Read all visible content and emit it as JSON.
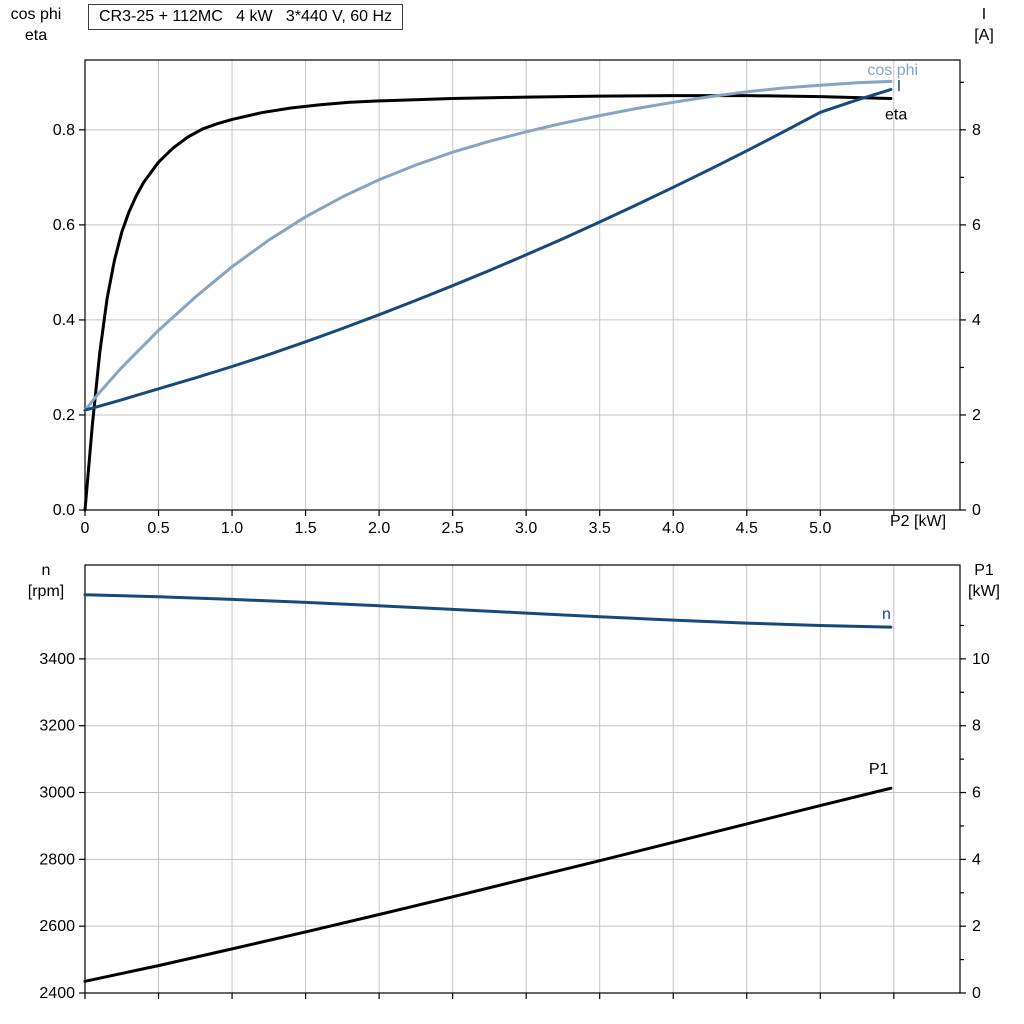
{
  "title": "CR3-25 + 112MC   4 kW   3*440 V, 60 Hz",
  "corner_labels": {
    "top_left_line1": "cos phi",
    "top_left_line2": "eta",
    "top_right_line1": "I",
    "top_right_line2": "[A]",
    "bottom_left_line1": "n",
    "bottom_left_line2": "[rpm]",
    "bottom_right_line1": "P1",
    "bottom_right_line2": "[kW]"
  },
  "colors": {
    "black": "#000000",
    "light_blue": "#86a5c3",
    "dark_blue": "#17497d",
    "grid": "#c3c3c3"
  },
  "chart_data": [
    {
      "type": "line",
      "title": "CR3-25 + 112MC   4 kW   3*440 V, 60 Hz",
      "x_axis": {
        "label": "P2 [kW]",
        "min": 0,
        "max": 5.95,
        "grid": [
          0.5,
          1,
          1.5,
          2,
          2.5,
          3,
          3.5,
          4,
          4.5,
          5,
          5.5
        ],
        "ticks": [
          0,
          0.5,
          1,
          1.5,
          2,
          2.5,
          3,
          3.5,
          4,
          4.5,
          5,
          5.5
        ],
        "labels": [
          {
            "v": 0,
            "t": "0"
          },
          {
            "v": 0.5,
            "t": "0.5"
          },
          {
            "v": 1,
            "t": "1.0"
          },
          {
            "v": 1.5,
            "t": "1.5"
          },
          {
            "v": 2,
            "t": "2.0"
          },
          {
            "v": 2.5,
            "t": "2.5"
          },
          {
            "v": 3,
            "t": "3.0"
          },
          {
            "v": 3.5,
            "t": "3.5"
          },
          {
            "v": 4,
            "t": "4.0"
          },
          {
            "v": 4.5,
            "t": "4.5"
          },
          {
            "v": 5,
            "t": "5.0"
          }
        ]
      },
      "y_left": {
        "label": "cos phi / eta",
        "min": 0,
        "max": 0.947,
        "grid": [
          0.2,
          0.4,
          0.6,
          0.8
        ],
        "ticks": [
          0,
          0.2,
          0.4,
          0.6,
          0.8
        ],
        "labels": [
          {
            "v": 0,
            "t": "0.0"
          },
          {
            "v": 0.2,
            "t": "0.2"
          },
          {
            "v": 0.4,
            "t": "0.4"
          },
          {
            "v": 0.6,
            "t": "0.6"
          },
          {
            "v": 0.8,
            "t": "0.8"
          }
        ]
      },
      "y_right": {
        "label": "I [A]",
        "min": 0,
        "max": 9.47,
        "ticks": [
          0,
          2,
          4,
          6,
          8
        ],
        "minor": [
          1,
          3,
          5,
          7,
          9
        ],
        "labels": [
          {
            "v": 0,
            "t": "0"
          },
          {
            "v": 2,
            "t": "2"
          },
          {
            "v": 4,
            "t": "4"
          },
          {
            "v": 6,
            "t": "6"
          },
          {
            "v": 8,
            "t": "8"
          }
        ]
      },
      "series": [
        {
          "name": "eta",
          "color": "#000000",
          "axis": "left",
          "label_at": {
            "x": 5.44,
            "y": 0.822
          },
          "points": [
            [
              0,
              0
            ],
            [
              0.05,
              0.18
            ],
            [
              0.1,
              0.33
            ],
            [
              0.15,
              0.445
            ],
            [
              0.2,
              0.525
            ],
            [
              0.25,
              0.585
            ],
            [
              0.3,
              0.628
            ],
            [
              0.35,
              0.662
            ],
            [
              0.4,
              0.69
            ],
            [
              0.5,
              0.732
            ],
            [
              0.6,
              0.762
            ],
            [
              0.7,
              0.785
            ],
            [
              0.8,
              0.802
            ],
            [
              0.9,
              0.813
            ],
            [
              1,
              0.822
            ],
            [
              1.2,
              0.836
            ],
            [
              1.4,
              0.846
            ],
            [
              1.6,
              0.853
            ],
            [
              1.8,
              0.858
            ],
            [
              2,
              0.861
            ],
            [
              2.5,
              0.866
            ],
            [
              3,
              0.869
            ],
            [
              3.5,
              0.871
            ],
            [
              4,
              0.872
            ],
            [
              4.5,
              0.872
            ],
            [
              5,
              0.87
            ],
            [
              5.48,
              0.866
            ]
          ]
        },
        {
          "name": "cos phi",
          "color": "#86a5c3",
          "axis": "left",
          "label_at": {
            "x": 5.32,
            "y": 0.915
          },
          "points": [
            [
              0,
              0.21
            ],
            [
              0.1,
              0.248
            ],
            [
              0.25,
              0.3
            ],
            [
              0.5,
              0.378
            ],
            [
              0.75,
              0.448
            ],
            [
              1,
              0.512
            ],
            [
              1.25,
              0.568
            ],
            [
              1.5,
              0.617
            ],
            [
              1.75,
              0.659
            ],
            [
              2,
              0.695
            ],
            [
              2.25,
              0.726
            ],
            [
              2.5,
              0.753
            ],
            [
              2.75,
              0.776
            ],
            [
              3,
              0.796
            ],
            [
              3.25,
              0.814
            ],
            [
              3.5,
              0.83
            ],
            [
              3.75,
              0.845
            ],
            [
              4,
              0.858
            ],
            [
              4.25,
              0.87
            ],
            [
              4.5,
              0.88
            ],
            [
              4.75,
              0.888
            ],
            [
              5,
              0.894
            ],
            [
              5.25,
              0.899
            ],
            [
              5.48,
              0.902
            ]
          ]
        },
        {
          "name": "I",
          "color": "#17497d",
          "axis": "right",
          "label_at": {
            "x": 5.52,
            "y": 8.82
          },
          "points": [
            [
              0,
              2.1
            ],
            [
              0.25,
              2.32
            ],
            [
              0.5,
              2.55
            ],
            [
              0.75,
              2.78
            ],
            [
              1,
              3.02
            ],
            [
              1.25,
              3.27
            ],
            [
              1.5,
              3.54
            ],
            [
              1.75,
              3.82
            ],
            [
              2,
              4.11
            ],
            [
              2.25,
              4.41
            ],
            [
              2.5,
              4.72
            ],
            [
              2.75,
              5.04
            ],
            [
              3,
              5.37
            ],
            [
              3.25,
              5.71
            ],
            [
              3.5,
              6.06
            ],
            [
              3.75,
              6.42
            ],
            [
              4,
              6.79
            ],
            [
              4.25,
              7.17
            ],
            [
              4.5,
              7.56
            ],
            [
              4.75,
              7.96
            ],
            [
              5,
              8.37
            ],
            [
              5.25,
              8.63
            ],
            [
              5.48,
              8.85
            ]
          ]
        }
      ]
    },
    {
      "type": "line",
      "x_axis": {
        "label": "",
        "min": 0,
        "max": 5.95,
        "grid": [
          0.5,
          1,
          1.5,
          2,
          2.5,
          3,
          3.5,
          4,
          4.5,
          5,
          5.5
        ],
        "ticks": [
          0,
          0.5,
          1,
          1.5,
          2,
          2.5,
          3,
          3.5,
          4,
          4.5,
          5,
          5.5
        ],
        "labels": []
      },
      "y_left": {
        "label": "n [rpm]",
        "min": 2400,
        "max": 3681,
        "grid": [
          2600,
          2800,
          3000,
          3200,
          3400
        ],
        "ticks": [
          2400,
          2600,
          2800,
          3000,
          3200,
          3400
        ],
        "labels": [
          {
            "v": 2400,
            "t": "2400"
          },
          {
            "v": 2600,
            "t": "2600"
          },
          {
            "v": 2800,
            "t": "2800"
          },
          {
            "v": 3000,
            "t": "3000"
          },
          {
            "v": 3200,
            "t": "3200"
          },
          {
            "v": 3400,
            "t": "3400"
          }
        ]
      },
      "y_right": {
        "label": "P1 [kW]",
        "min": 0,
        "max": 12.81,
        "ticks": [
          0,
          2,
          4,
          6,
          8,
          10
        ],
        "minor": [
          1,
          3,
          5,
          7,
          9,
          11
        ],
        "labels": [
          {
            "v": 0,
            "t": "0"
          },
          {
            "v": 2,
            "t": "2"
          },
          {
            "v": 4,
            "t": "4"
          },
          {
            "v": 6,
            "t": "6"
          },
          {
            "v": 8,
            "t": "8"
          },
          {
            "v": 10,
            "t": "10"
          }
        ]
      },
      "series": [
        {
          "name": "n",
          "color": "#17497d",
          "axis": "left",
          "label_at": {
            "x": 5.42,
            "y": 3520
          },
          "points": [
            [
              0,
              3592
            ],
            [
              0.5,
              3586
            ],
            [
              1,
              3578
            ],
            [
              1.5,
              3569
            ],
            [
              2,
              3559
            ],
            [
              2.5,
              3548
            ],
            [
              3,
              3537
            ],
            [
              3.5,
              3526
            ],
            [
              4,
              3516
            ],
            [
              4.5,
              3507
            ],
            [
              5,
              3500
            ],
            [
              5.48,
              3495
            ]
          ]
        },
        {
          "name": "P1",
          "color": "#000000",
          "axis": "right",
          "label_at": {
            "x": 5.33,
            "y": 6.55
          },
          "points": [
            [
              0,
              0.35
            ],
            [
              0.5,
              0.82
            ],
            [
              1,
              1.32
            ],
            [
              1.5,
              1.83
            ],
            [
              2,
              2.35
            ],
            [
              2.5,
              2.88
            ],
            [
              3,
              3.42
            ],
            [
              3.5,
              3.96
            ],
            [
              4,
              4.51
            ],
            [
              4.5,
              5.06
            ],
            [
              5,
              5.61
            ],
            [
              5.48,
              6.13
            ]
          ]
        }
      ]
    }
  ]
}
